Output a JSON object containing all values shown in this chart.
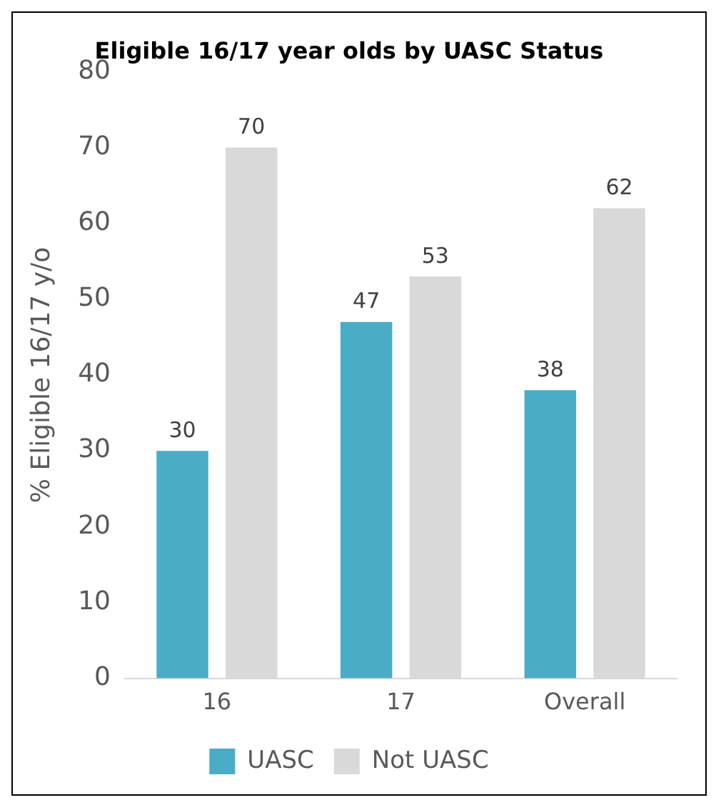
{
  "chart_data": {
    "type": "bar",
    "title": "Eligible 16/17 year olds by UASC Status",
    "ylabel": "% Eligible 16/17 y/o",
    "categories": [
      "16",
      "17",
      "Overall"
    ],
    "series": [
      {
        "name": "UASC",
        "color": "#4bacc6",
        "values": [
          30,
          47,
          38
        ]
      },
      {
        "name": "Not UASC",
        "color": "#d9d9d9",
        "values": [
          70,
          53,
          62
        ]
      }
    ],
    "ylim": [
      0,
      80
    ],
    "yticks": [
      0,
      10,
      20,
      30,
      40,
      50,
      60,
      70,
      80
    ],
    "grid": false,
    "legend": "bottom",
    "data_labels": true
  }
}
